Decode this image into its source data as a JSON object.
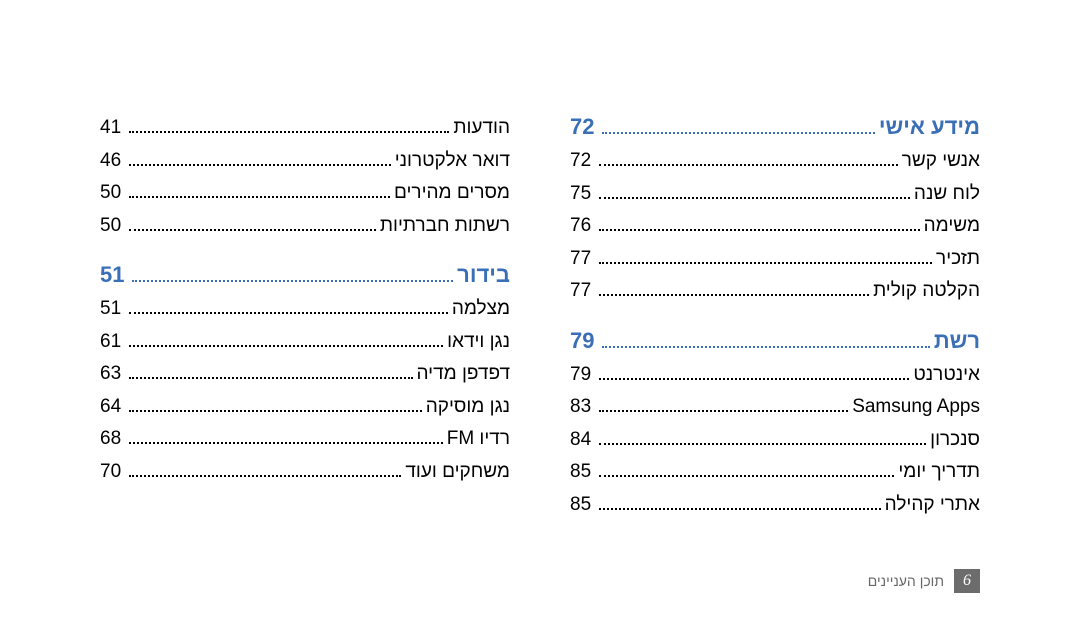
{
  "colors": {
    "section": "#3a6fb7",
    "text": "#000000",
    "footer_box_bg": "#6c6c6c",
    "footer_box_fg": "#ffffff",
    "footer_text": "#666666",
    "background": "#ffffff"
  },
  "typography": {
    "body_fontsize": 19,
    "section_fontsize": 22,
    "footer_fontsize": 14
  },
  "right_column": [
    {
      "label": "הודעות",
      "page": "41",
      "section": false
    },
    {
      "label": "דואר אלקטרוני",
      "page": "46",
      "section": false
    },
    {
      "label": "מסרים מהירים",
      "page": "50",
      "section": false
    },
    {
      "label": "רשתות חברתיות",
      "page": "50",
      "section": false
    },
    {
      "label": "בידור",
      "page": "51",
      "section": true
    },
    {
      "label": "מצלמה",
      "page": "51",
      "section": false
    },
    {
      "label": "נגן וידאו",
      "page": "61",
      "section": false
    },
    {
      "label": "דפדפן מדיה",
      "page": "63",
      "section": false
    },
    {
      "label": "נגן מוסיקה",
      "page": "64",
      "section": false
    },
    {
      "label": "רדיו FM",
      "page": "68",
      "section": false
    },
    {
      "label": "משחקים ועוד",
      "page": "70",
      "section": false
    }
  ],
  "left_column": [
    {
      "label": "מידע אישי",
      "page": "72",
      "section": true
    },
    {
      "label": "אנשי קשר",
      "page": "72",
      "section": false
    },
    {
      "label": "לוח שנה",
      "page": "75",
      "section": false
    },
    {
      "label": "משימה",
      "page": "76",
      "section": false
    },
    {
      "label": "תזכיר",
      "page": "77",
      "section": false
    },
    {
      "label": "הקלטה קולית",
      "page": "77",
      "section": false
    },
    {
      "label": "רשת",
      "page": "79",
      "section": true
    },
    {
      "label": "אינטרנט",
      "page": "79",
      "section": false
    },
    {
      "label": "Samsung Apps",
      "page": "83",
      "section": false
    },
    {
      "label": "סנכרון",
      "page": "84",
      "section": false
    },
    {
      "label": "תדריך יומי",
      "page": "85",
      "section": false
    },
    {
      "label": "אתרי קהילה",
      "page": "85",
      "section": false
    }
  ],
  "footer": {
    "page_number": "6",
    "text": "תוכן העניינים"
  }
}
